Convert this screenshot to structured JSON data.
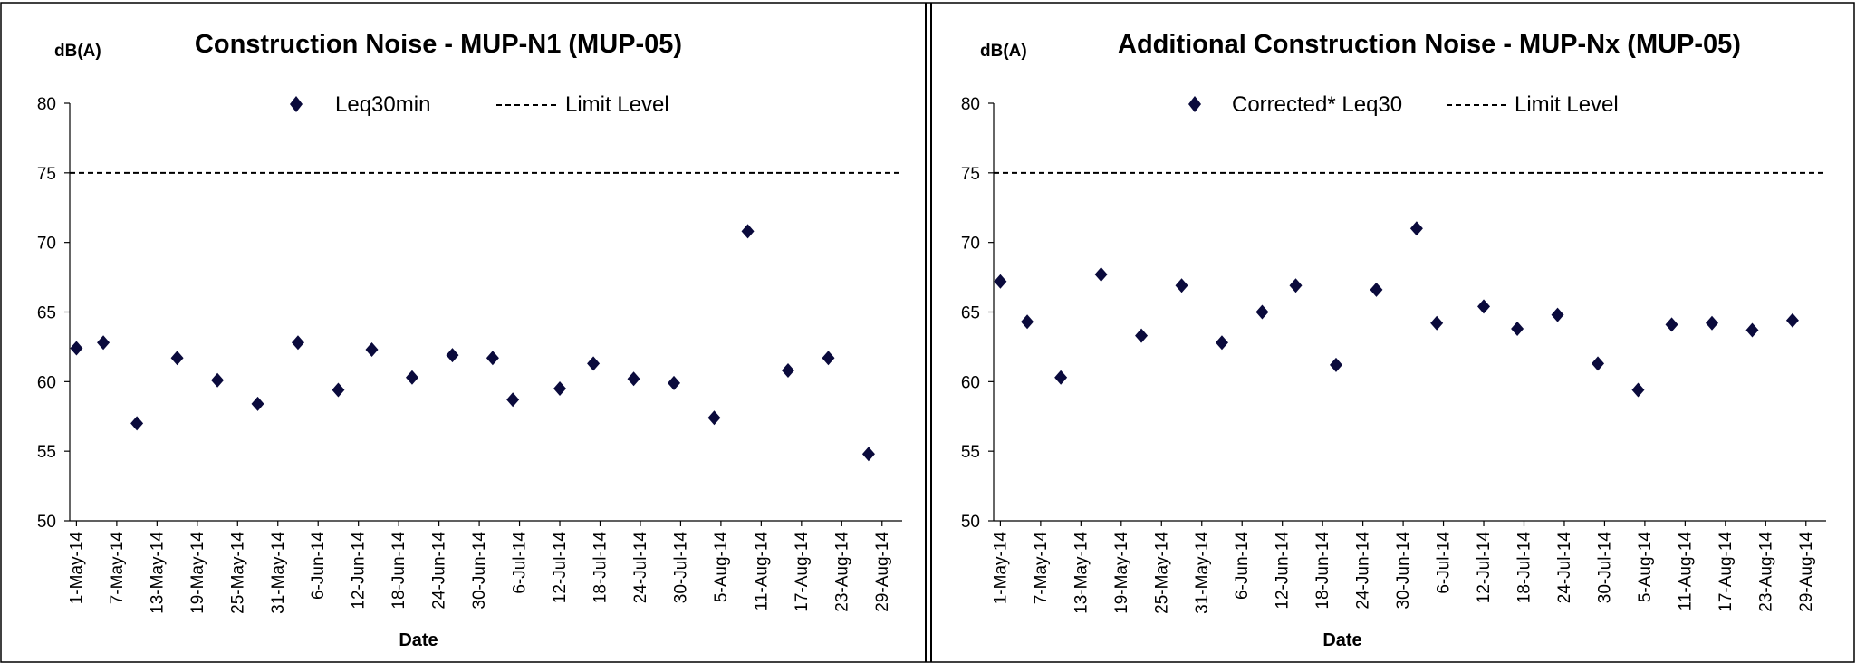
{
  "chart_data": [
    {
      "type": "scatter",
      "title": "Construction Noise - MUP-N1  (MUP-05)",
      "ylabel": "dB(A)",
      "xlabel": "Date",
      "ylim": [
        50,
        80
      ],
      "yticks": [
        50,
        55,
        60,
        65,
        70,
        75,
        80
      ],
      "xlim": [
        "2014-04-30",
        "2014-09-01"
      ],
      "xticks": [
        "2014-05-01",
        "2014-05-07",
        "2014-05-13",
        "2014-05-19",
        "2014-05-25",
        "2014-05-31",
        "2014-06-06",
        "2014-06-12",
        "2014-06-18",
        "2014-06-24",
        "2014-06-30",
        "2014-07-06",
        "2014-07-12",
        "2014-07-18",
        "2014-07-24",
        "2014-07-30",
        "2014-08-05",
        "2014-08-11",
        "2014-08-17",
        "2014-08-23",
        "2014-08-29"
      ],
      "xtick_labels": [
        "1-May-14",
        "7-May-14",
        "13-May-14",
        "19-May-14",
        "25-May-14",
        "31-May-14",
        "6-Jun-14",
        "12-Jun-14",
        "18-Jun-14",
        "24-Jun-14",
        "30-Jun-14",
        "6-Jul-14",
        "12-Jul-14",
        "18-Jul-14",
        "24-Jul-14",
        "30-Jul-14",
        "5-Aug-14",
        "11-Aug-14",
        "17-Aug-14",
        "23-Aug-14",
        "29-Aug-14"
      ],
      "legend_position": "top",
      "limit_level": 75,
      "series": [
        {
          "name": "Leq30min",
          "color": "#0a0a3c",
          "marker": "diamond",
          "points": [
            {
              "x": "2014-05-01",
              "y": 62.4
            },
            {
              "x": "2014-05-05",
              "y": 62.8
            },
            {
              "x": "2014-05-10",
              "y": 57.0
            },
            {
              "x": "2014-05-16",
              "y": 61.7
            },
            {
              "x": "2014-05-22",
              "y": 60.1
            },
            {
              "x": "2014-05-28",
              "y": 58.4
            },
            {
              "x": "2014-06-03",
              "y": 62.8
            },
            {
              "x": "2014-06-09",
              "y": 59.4
            },
            {
              "x": "2014-06-14",
              "y": 62.3
            },
            {
              "x": "2014-06-20",
              "y": 60.3
            },
            {
              "x": "2014-06-26",
              "y": 61.9
            },
            {
              "x": "2014-07-02",
              "y": 61.7
            },
            {
              "x": "2014-07-05",
              "y": 58.7
            },
            {
              "x": "2014-07-12",
              "y": 59.5
            },
            {
              "x": "2014-07-17",
              "y": 61.3
            },
            {
              "x": "2014-07-23",
              "y": 60.2
            },
            {
              "x": "2014-07-29",
              "y": 59.9
            },
            {
              "x": "2014-08-04",
              "y": 57.4
            },
            {
              "x": "2014-08-09",
              "y": 70.8
            },
            {
              "x": "2014-08-15",
              "y": 60.8
            },
            {
              "x": "2014-08-21",
              "y": 61.7
            },
            {
              "x": "2014-08-27",
              "y": 54.8
            }
          ]
        },
        {
          "name": "Limit Level",
          "style": "dashed",
          "value": 75
        }
      ]
    },
    {
      "type": "scatter",
      "title": "Additional Construction Noise - MUP-Nx  (MUP-05)",
      "ylabel": "dB(A)",
      "xlabel": "Date",
      "ylim": [
        50,
        80
      ],
      "yticks": [
        50,
        55,
        60,
        65,
        70,
        75,
        80
      ],
      "xlim": [
        "2014-04-30",
        "2014-09-01"
      ],
      "xticks": [
        "2014-05-01",
        "2014-05-07",
        "2014-05-13",
        "2014-05-19",
        "2014-05-25",
        "2014-05-31",
        "2014-06-06",
        "2014-06-12",
        "2014-06-18",
        "2014-06-24",
        "2014-06-30",
        "2014-07-06",
        "2014-07-12",
        "2014-07-18",
        "2014-07-24",
        "2014-07-30",
        "2014-08-05",
        "2014-08-11",
        "2014-08-17",
        "2014-08-23",
        "2014-08-29"
      ],
      "xtick_labels": [
        "1-May-14",
        "7-May-14",
        "13-May-14",
        "19-May-14",
        "25-May-14",
        "31-May-14",
        "6-Jun-14",
        "12-Jun-14",
        "18-Jun-14",
        "24-Jun-14",
        "30-Jun-14",
        "6-Jul-14",
        "12-Jul-14",
        "18-Jul-14",
        "24-Jul-14",
        "30-Jul-14",
        "5-Aug-14",
        "11-Aug-14",
        "17-Aug-14",
        "23-Aug-14",
        "29-Aug-14"
      ],
      "legend_position": "top",
      "limit_level": 75,
      "series": [
        {
          "name": "Corrected* Leq30",
          "color": "#0a0a3c",
          "marker": "diamond",
          "points": [
            {
              "x": "2014-05-01",
              "y": 67.2
            },
            {
              "x": "2014-05-05",
              "y": 64.3
            },
            {
              "x": "2014-05-10",
              "y": 60.3
            },
            {
              "x": "2014-05-16",
              "y": 67.7
            },
            {
              "x": "2014-05-22",
              "y": 63.3
            },
            {
              "x": "2014-05-28",
              "y": 66.9
            },
            {
              "x": "2014-06-03",
              "y": 62.8
            },
            {
              "x": "2014-06-09",
              "y": 65.0
            },
            {
              "x": "2014-06-14",
              "y": 66.9
            },
            {
              "x": "2014-06-20",
              "y": 61.2
            },
            {
              "x": "2014-06-26",
              "y": 66.6
            },
            {
              "x": "2014-07-02",
              "y": 71.0
            },
            {
              "x": "2014-07-05",
              "y": 64.2
            },
            {
              "x": "2014-07-12",
              "y": 65.4
            },
            {
              "x": "2014-07-17",
              "y": 63.8
            },
            {
              "x": "2014-07-23",
              "y": 64.8
            },
            {
              "x": "2014-07-29",
              "y": 61.3
            },
            {
              "x": "2014-08-04",
              "y": 59.4
            },
            {
              "x": "2014-08-09",
              "y": 64.1
            },
            {
              "x": "2014-08-15",
              "y": 64.2
            },
            {
              "x": "2014-08-21",
              "y": 63.7
            },
            {
              "x": "2014-08-27",
              "y": 64.4
            }
          ]
        },
        {
          "name": "Limit Level",
          "style": "dashed",
          "value": 75
        }
      ]
    }
  ]
}
